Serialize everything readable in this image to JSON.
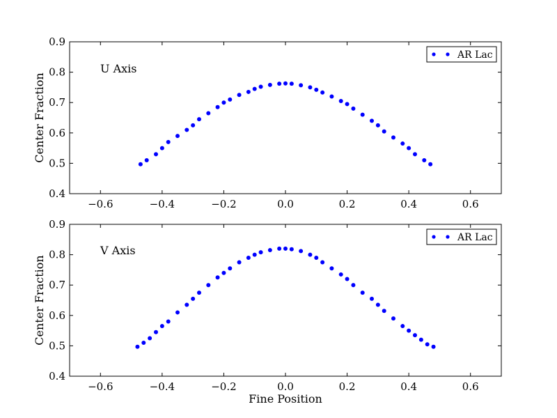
{
  "figure": {
    "background": "#ffffff",
    "point_color": "#0000ff"
  },
  "chart_data": [
    {
      "type": "scatter",
      "title": "",
      "annotation": "U Axis",
      "xlabel": "",
      "ylabel": "Center Fraction",
      "xlim": [
        -0.7,
        0.7
      ],
      "ylim": [
        0.4,
        0.9
      ],
      "xticks": [
        -0.6,
        -0.4,
        -0.2,
        0.0,
        0.2,
        0.4,
        0.6
      ],
      "xtick_labels": [
        "−0.6",
        "−0.4",
        "−0.2",
        "0.0",
        "0.2",
        "0.4",
        "0.6"
      ],
      "yticks": [
        0.4,
        0.5,
        0.6,
        0.7,
        0.8,
        0.9
      ],
      "ytick_labels": [
        "0.4",
        "0.5",
        "0.6",
        "0.7",
        "0.8",
        "0.9"
      ],
      "grid": false,
      "legend": {
        "position": "top-right",
        "entries": [
          "AR Lac"
        ]
      },
      "series": [
        {
          "name": "AR Lac",
          "color": "#0000ff",
          "x": [
            -0.47,
            -0.45,
            -0.42,
            -0.4,
            -0.38,
            -0.35,
            -0.32,
            -0.3,
            -0.28,
            -0.25,
            -0.22,
            -0.2,
            -0.18,
            -0.15,
            -0.12,
            -0.1,
            -0.08,
            -0.05,
            -0.02,
            0.0,
            0.02,
            0.05,
            0.08,
            0.1,
            0.12,
            0.15,
            0.18,
            0.2,
            0.22,
            0.25,
            0.28,
            0.3,
            0.32,
            0.35,
            0.38,
            0.4,
            0.42,
            0.45,
            0.47
          ],
          "y": [
            0.497,
            0.51,
            0.53,
            0.55,
            0.57,
            0.59,
            0.61,
            0.625,
            0.645,
            0.665,
            0.685,
            0.7,
            0.71,
            0.725,
            0.735,
            0.745,
            0.752,
            0.758,
            0.762,
            0.763,
            0.762,
            0.757,
            0.75,
            0.742,
            0.733,
            0.72,
            0.705,
            0.695,
            0.68,
            0.66,
            0.64,
            0.625,
            0.605,
            0.585,
            0.565,
            0.55,
            0.53,
            0.51,
            0.497
          ]
        }
      ]
    },
    {
      "type": "scatter",
      "title": "",
      "annotation": "V Axis",
      "xlabel": "Fine Position",
      "ylabel": "Center Fraction",
      "xlim": [
        -0.7,
        0.7
      ],
      "ylim": [
        0.4,
        0.9
      ],
      "xticks": [
        -0.6,
        -0.4,
        -0.2,
        0.0,
        0.2,
        0.4,
        0.6
      ],
      "xtick_labels": [
        "−0.6",
        "−0.4",
        "−0.2",
        "0.0",
        "0.2",
        "0.4",
        "0.6"
      ],
      "yticks": [
        0.4,
        0.5,
        0.6,
        0.7,
        0.8,
        0.9
      ],
      "ytick_labels": [
        "0.4",
        "0.5",
        "0.6",
        "0.7",
        "0.8",
        "0.9"
      ],
      "grid": false,
      "legend": {
        "position": "top-right",
        "entries": [
          "AR Lac"
        ]
      },
      "series": [
        {
          "name": "AR Lac",
          "color": "#0000ff",
          "x": [
            -0.48,
            -0.46,
            -0.44,
            -0.42,
            -0.4,
            -0.38,
            -0.35,
            -0.32,
            -0.3,
            -0.28,
            -0.25,
            -0.22,
            -0.2,
            -0.18,
            -0.15,
            -0.12,
            -0.1,
            -0.08,
            -0.05,
            -0.02,
            0.0,
            0.02,
            0.05,
            0.08,
            0.1,
            0.12,
            0.15,
            0.18,
            0.2,
            0.22,
            0.25,
            0.28,
            0.3,
            0.32,
            0.35,
            0.38,
            0.4,
            0.42,
            0.44,
            0.46,
            0.48
          ],
          "y": [
            0.497,
            0.51,
            0.525,
            0.545,
            0.565,
            0.58,
            0.61,
            0.635,
            0.655,
            0.675,
            0.7,
            0.725,
            0.74,
            0.755,
            0.775,
            0.79,
            0.8,
            0.808,
            0.815,
            0.82,
            0.82,
            0.818,
            0.812,
            0.8,
            0.79,
            0.775,
            0.755,
            0.735,
            0.72,
            0.7,
            0.675,
            0.655,
            0.635,
            0.615,
            0.59,
            0.565,
            0.55,
            0.535,
            0.52,
            0.505,
            0.497
          ]
        }
      ]
    }
  ]
}
